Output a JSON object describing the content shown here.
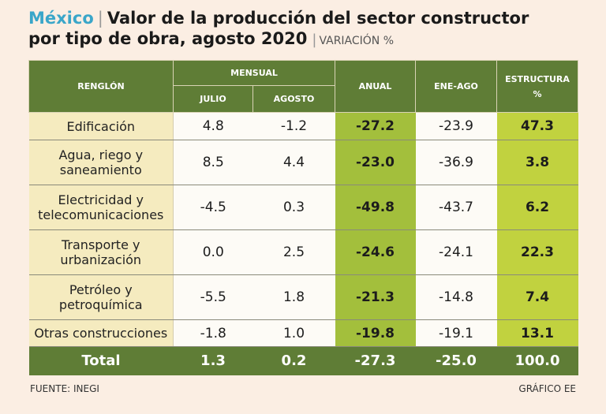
{
  "title": {
    "country": "México",
    "line1": "Valor de la producción del sector constructor",
    "line2": "por tipo de obra, agosto 2020",
    "subtitle": "VARIACIÓN %"
  },
  "headers": {
    "renglon": "RENGLÓN",
    "mensual": "MENSUAL",
    "julio": "JULIO",
    "agosto": "AGOSTO",
    "anual": "ANUAL",
    "ene_ago": "ENE-AGO",
    "estructura_line1": "ESTRUCTURA",
    "estructura_line2": "%"
  },
  "rows": [
    {
      "label_line1": "Edificación",
      "label_line2": "",
      "julio": "4.8",
      "agosto": "-1.2",
      "anual": "-27.2",
      "ene_ago": "-23.9",
      "estructura": "47.3"
    },
    {
      "label_line1": "Agua, riego y",
      "label_line2": "saneamiento",
      "julio": "8.5",
      "agosto": "4.4",
      "anual": "-23.0",
      "ene_ago": "-36.9",
      "estructura": "3.8"
    },
    {
      "label_line1": "Electricidad y",
      "label_line2": "telecomunicaciones",
      "julio": "-4.5",
      "agosto": "0.3",
      "anual": "-49.8",
      "ene_ago": "-43.7",
      "estructura": "6.2"
    },
    {
      "label_line1": "Transporte y",
      "label_line2": "urbanización",
      "julio": "0.0",
      "agosto": "2.5",
      "anual": "-24.6",
      "ene_ago": "-24.1",
      "estructura": "22.3"
    },
    {
      "label_line1": "Petróleo y",
      "label_line2": "petroquímica",
      "julio": "-5.5",
      "agosto": "1.8",
      "anual": "-21.3",
      "ene_ago": "-14.8",
      "estructura": "7.4"
    },
    {
      "label_line1": "Otras construcciones",
      "label_line2": "",
      "julio": "-1.8",
      "agosto": "1.0",
      "anual": "-19.8",
      "ene_ago": "-19.1",
      "estructura": "13.1"
    }
  ],
  "total": {
    "label": "Total",
    "julio": "1.3",
    "agosto": "0.2",
    "anual": "-27.3",
    "ene_ago": "-25.0",
    "estructura": "100.0"
  },
  "footer": {
    "source": "FUENTE: INEGI",
    "credit": "GRÁFICO EE"
  },
  "colors": {
    "header_green": "#5f7d36",
    "anual_green": "#a3bf3c",
    "estructura_green": "#c1d23f",
    "label_bg": "#f5ebbf",
    "title_blue": "#3aa6c9"
  }
}
